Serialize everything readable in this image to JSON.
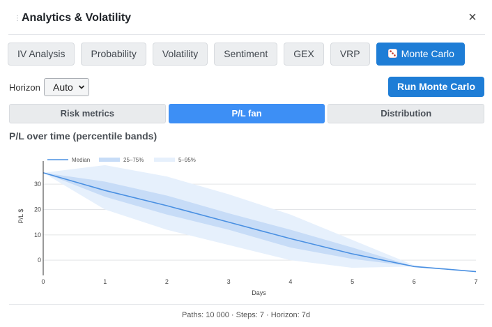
{
  "header": {
    "title": "Analytics & Volatility",
    "close_label": "×"
  },
  "tabs": [
    {
      "label": "IV Analysis",
      "active": false
    },
    {
      "label": "Probability",
      "active": false
    },
    {
      "label": "Volatility",
      "active": false
    },
    {
      "label": "Sentiment",
      "active": false
    },
    {
      "label": "GEX",
      "active": false
    },
    {
      "label": "VRP",
      "active": false
    },
    {
      "label": "Monte Carlo",
      "active": true,
      "icon": "dice-icon"
    }
  ],
  "controls": {
    "horizon_label": "Horizon",
    "horizon_value": "Auto",
    "run_label": "Run Monte Carlo"
  },
  "subtabs": [
    {
      "label": "Risk metrics",
      "active": false
    },
    {
      "label": "P/L fan",
      "active": true
    },
    {
      "label": "Distribution",
      "active": false
    }
  ],
  "section_title": "P/L over time (percentile bands)",
  "colors": {
    "accent": "#1e7dd6",
    "median": "#4a90e2",
    "band_inner": "#c7dcf7",
    "band_outer": "#e6f0fc"
  },
  "chart_data": {
    "type": "area",
    "xlabel": "Days",
    "ylabel": "P/L $",
    "x": [
      0,
      1,
      2,
      3,
      4,
      5,
      6,
      7
    ],
    "x_ticks": [
      0,
      1,
      2,
      3,
      4,
      5,
      6,
      7
    ],
    "y_ticks": [
      0,
      10,
      20,
      30
    ],
    "xlim": [
      0,
      7
    ],
    "ylim": [
      -6,
      38
    ],
    "grid": true,
    "legend_placement": "top-left",
    "series": [
      {
        "name": "Median",
        "kind": "line",
        "values": [
          34.5,
          27.5,
          21.5,
          15,
          8.5,
          2.5,
          -2.5,
          -4.5
        ]
      },
      {
        "name": "25–75%",
        "kind": "band",
        "low": [
          34.5,
          25,
          18,
          12,
          5,
          0.5,
          -2.5,
          -4.5
        ],
        "high": [
          34.5,
          31,
          25.5,
          18.5,
          12,
          5,
          -2.5,
          -4.5
        ]
      },
      {
        "name": "5–95%",
        "kind": "band",
        "low": [
          34.5,
          20,
          12,
          6,
          0,
          -3,
          -2.5,
          -4.5
        ],
        "high": [
          34.5,
          37.5,
          33,
          26,
          18,
          8,
          -2,
          -4.5
        ]
      }
    ]
  },
  "footer": {
    "text": "Paths: 10 000 · Steps: 7 · Horizon: 7d"
  }
}
